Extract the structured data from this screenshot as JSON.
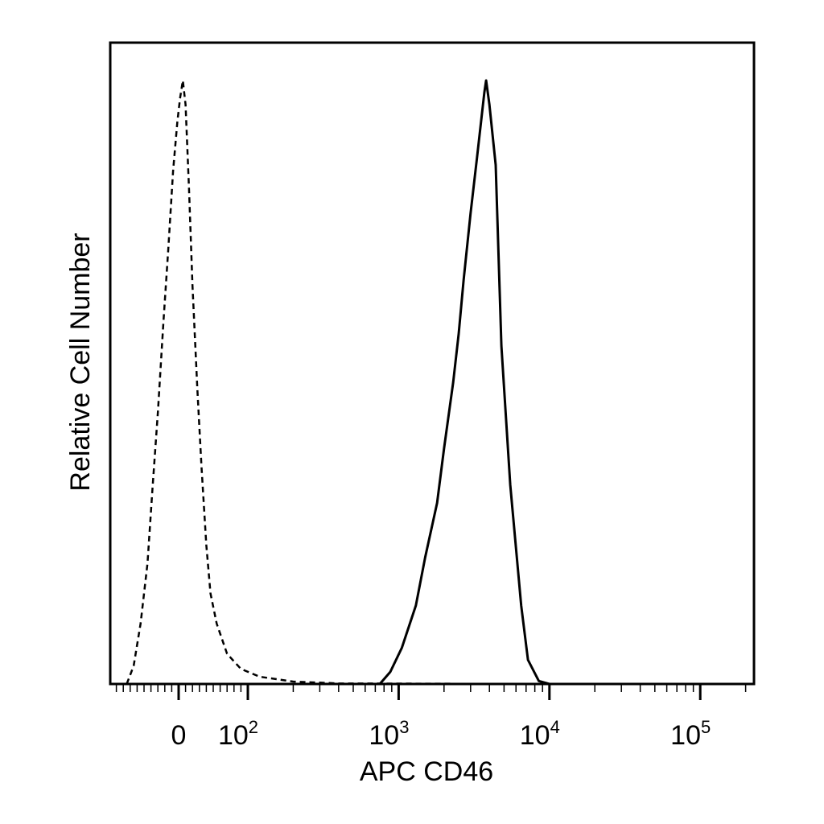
{
  "chart_data": {
    "type": "area",
    "title": "",
    "xlabel": "APC CD46",
    "ylabel": "Relative Cell Number",
    "x_scale": "biexponential",
    "xlim": [
      -200,
      250000
    ],
    "ylim": [
      0,
      1
    ],
    "grid": false,
    "legend": "none",
    "x_tick_labels": [
      {
        "value": 0,
        "base": "0",
        "exp": ""
      },
      {
        "value": 100,
        "base": "10",
        "exp": "2"
      },
      {
        "value": 1000,
        "base": "10",
        "exp": "3"
      },
      {
        "value": 10000,
        "base": "10",
        "exp": "4"
      },
      {
        "value": 100000,
        "base": "10",
        "exp": "5"
      }
    ],
    "series": [
      {
        "style": "dashed",
        "color": "#000000",
        "points": [
          [
            -75,
            0.0
          ],
          [
            -65,
            0.03
          ],
          [
            -55,
            0.1
          ],
          [
            -45,
            0.2
          ],
          [
            -38,
            0.32
          ],
          [
            -30,
            0.45
          ],
          [
            -22,
            0.6
          ],
          [
            -15,
            0.72
          ],
          [
            -8,
            0.85
          ],
          [
            -2,
            0.93
          ],
          [
            2,
            0.97
          ],
          [
            6,
            1.0
          ],
          [
            10,
            0.96
          ],
          [
            15,
            0.82
          ],
          [
            20,
            0.66
          ],
          [
            27,
            0.49
          ],
          [
            33,
            0.36
          ],
          [
            40,
            0.23
          ],
          [
            46,
            0.15
          ],
          [
            55,
            0.1
          ],
          [
            70,
            0.05
          ],
          [
            90,
            0.025
          ],
          [
            120,
            0.012
          ],
          [
            200,
            0.004
          ],
          [
            400,
            0.001
          ],
          [
            9000,
            0.0
          ]
        ]
      },
      {
        "style": "solid",
        "color": "#000000",
        "points": [
          [
            750,
            0.0
          ],
          [
            880,
            0.02
          ],
          [
            1050,
            0.06
          ],
          [
            1300,
            0.13
          ],
          [
            1500,
            0.21
          ],
          [
            1800,
            0.3
          ],
          [
            2000,
            0.39
          ],
          [
            2300,
            0.5
          ],
          [
            2500,
            0.58
          ],
          [
            2700,
            0.67
          ],
          [
            3000,
            0.78
          ],
          [
            3300,
            0.87
          ],
          [
            3700,
            0.98
          ],
          [
            3800,
            1.0
          ],
          [
            4000,
            0.96
          ],
          [
            4400,
            0.86
          ],
          [
            4800,
            0.56
          ],
          [
            5500,
            0.33
          ],
          [
            6500,
            0.13
          ],
          [
            7200,
            0.04
          ],
          [
            8500,
            0.005
          ],
          [
            10000,
            0.0
          ]
        ]
      }
    ]
  }
}
